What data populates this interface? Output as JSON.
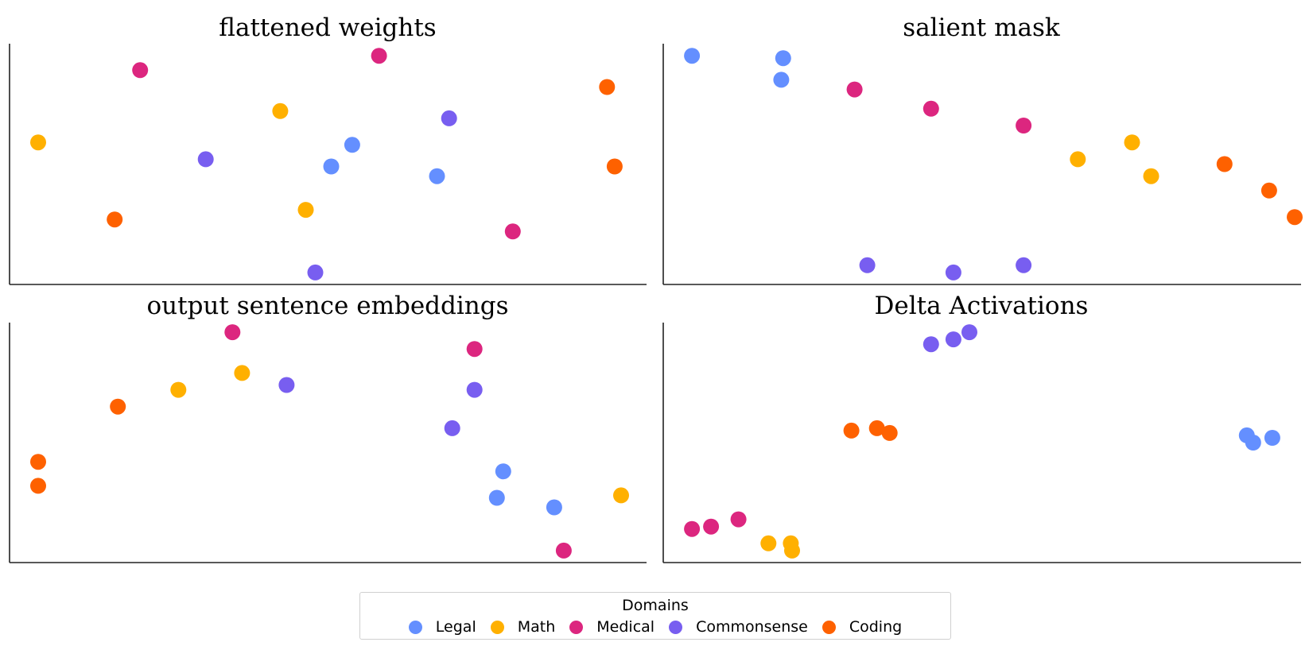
{
  "colors": {
    "Legal": "#648FFF",
    "Math": "#FFB000",
    "Medical": "#DC267F",
    "Commonsense": "#785EF0",
    "Coding": "#FE6100"
  },
  "legend": {
    "title": "Domains",
    "items": [
      "Legal",
      "Math",
      "Medical",
      "Commonsense",
      "Coding"
    ]
  },
  "chart_data": [
    {
      "type": "scatter",
      "title": "flattened weights",
      "xlabel": "",
      "ylabel": "",
      "xlim": [
        0,
        100
      ],
      "ylim": [
        0,
        100
      ],
      "grid": false,
      "series": [
        {
          "name": "Legal",
          "points": [
            [
              50.5,
              49
            ],
            [
              53.8,
              58
            ],
            [
              67.1,
              45
            ]
          ]
        },
        {
          "name": "Math",
          "points": [
            [
              4.5,
              59
            ],
            [
              42.5,
              72
            ],
            [
              46.5,
              31
            ]
          ]
        },
        {
          "name": "Medical",
          "points": [
            [
              20.5,
              89
            ],
            [
              58.0,
              95
            ],
            [
              79.0,
              22
            ]
          ]
        },
        {
          "name": "Commonsense",
          "points": [
            [
              30.8,
              52
            ],
            [
              48.0,
              5
            ],
            [
              69.0,
              69
            ]
          ]
        },
        {
          "name": "Coding",
          "points": [
            [
              16.5,
              27
            ],
            [
              93.8,
              82
            ],
            [
              95.0,
              49
            ]
          ]
        }
      ]
    },
    {
      "type": "scatter",
      "title": "salient mask",
      "xlabel": "",
      "ylabel": "",
      "xlim": [
        0,
        100
      ],
      "ylim": [
        0,
        100
      ],
      "grid": false,
      "series": [
        {
          "name": "Legal",
          "points": [
            [
              4.5,
              95
            ],
            [
              18.5,
              85
            ],
            [
              18.8,
              94
            ]
          ]
        },
        {
          "name": "Math",
          "points": [
            [
              65.0,
              52
            ],
            [
              73.5,
              59
            ],
            [
              76.5,
              45
            ]
          ]
        },
        {
          "name": "Medical",
          "points": [
            [
              30.0,
              81
            ],
            [
              42.0,
              73
            ],
            [
              56.5,
              66
            ]
          ]
        },
        {
          "name": "Commonsense",
          "points": [
            [
              32.0,
              8
            ],
            [
              45.5,
              5
            ],
            [
              56.5,
              8
            ]
          ]
        },
        {
          "name": "Coding",
          "points": [
            [
              88.0,
              50
            ],
            [
              95.0,
              39
            ],
            [
              99.0,
              28
            ]
          ]
        }
      ]
    },
    {
      "type": "scatter",
      "title": "output sentence embeddings",
      "xlabel": "",
      "ylabel": "",
      "xlim": [
        0,
        100
      ],
      "ylim": [
        0,
        100
      ],
      "grid": false,
      "series": [
        {
          "name": "Legal",
          "points": [
            [
              76.5,
              27
            ],
            [
              77.5,
              38
            ],
            [
              85.5,
              23
            ]
          ]
        },
        {
          "name": "Math",
          "points": [
            [
              26.5,
              72
            ],
            [
              36.5,
              79
            ],
            [
              96.0,
              28
            ]
          ]
        },
        {
          "name": "Medical",
          "points": [
            [
              35.0,
              96
            ],
            [
              73.0,
              89
            ],
            [
              87.0,
              5
            ]
          ]
        },
        {
          "name": "Commonsense",
          "points": [
            [
              43.5,
              74
            ],
            [
              69.5,
              56
            ],
            [
              73.0,
              72
            ]
          ]
        },
        {
          "name": "Coding",
          "points": [
            [
              4.5,
              32
            ],
            [
              4.5,
              42
            ],
            [
              17.0,
              65
            ]
          ]
        }
      ]
    },
    {
      "type": "scatter",
      "title": "Delta Activations",
      "xlabel": "",
      "ylabel": "",
      "xlim": [
        0,
        100
      ],
      "ylim": [
        0,
        100
      ],
      "grid": false,
      "series": [
        {
          "name": "Legal",
          "points": [
            [
              91.5,
              53
            ],
            [
              92.5,
              50
            ],
            [
              95.5,
              52
            ]
          ]
        },
        {
          "name": "Math",
          "points": [
            [
              16.5,
              8
            ],
            [
              20.0,
              8
            ],
            [
              20.2,
              5
            ]
          ]
        },
        {
          "name": "Medical",
          "points": [
            [
              4.5,
              14
            ],
            [
              7.5,
              15
            ],
            [
              11.8,
              18
            ]
          ]
        },
        {
          "name": "Commonsense",
          "points": [
            [
              42.0,
              91
            ],
            [
              45.5,
              93
            ],
            [
              48.0,
              96
            ]
          ]
        },
        {
          "name": "Coding",
          "points": [
            [
              29.5,
              55
            ],
            [
              33.5,
              56
            ],
            [
              35.5,
              54
            ]
          ]
        }
      ]
    }
  ]
}
